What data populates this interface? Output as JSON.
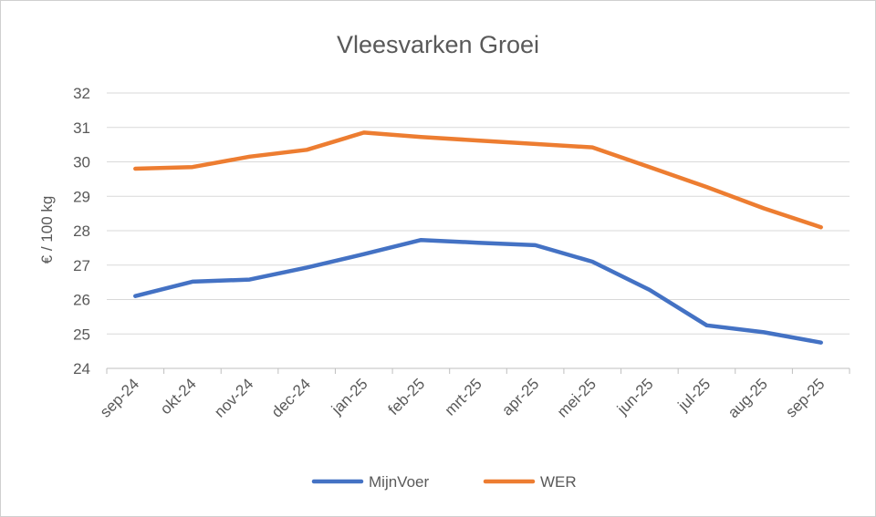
{
  "chart_data": {
    "type": "line",
    "title": "Vleesvarken Groei",
    "xlabel": "",
    "ylabel": "€ / 100 kg",
    "ylim": [
      24,
      32
    ],
    "yticks": [
      "24",
      "25",
      "26",
      "27",
      "28",
      "29",
      "30",
      "31",
      "32"
    ],
    "categories": [
      "sep-24",
      "okt-24",
      "nov-24",
      "dec-24",
      "jan-25",
      "feb-25",
      "mrt-25",
      "apr-25",
      "mei-25",
      "jun-25",
      "jul-25",
      "aug-25",
      "sep-25"
    ],
    "grid": true,
    "legend": "bottom",
    "series": [
      {
        "name": "MijnVoer",
        "color": "#4472C4",
        "values": [
          26.1,
          26.52,
          26.58,
          26.93,
          27.32,
          27.73,
          27.65,
          27.58,
          27.1,
          26.28,
          25.25,
          25.05,
          24.75
        ]
      },
      {
        "name": "WER",
        "color": "#ED7D31",
        "values": [
          29.8,
          29.85,
          30.15,
          30.35,
          30.85,
          30.72,
          30.62,
          30.52,
          30.42,
          29.85,
          29.27,
          28.65,
          28.1
        ]
      }
    ]
  }
}
